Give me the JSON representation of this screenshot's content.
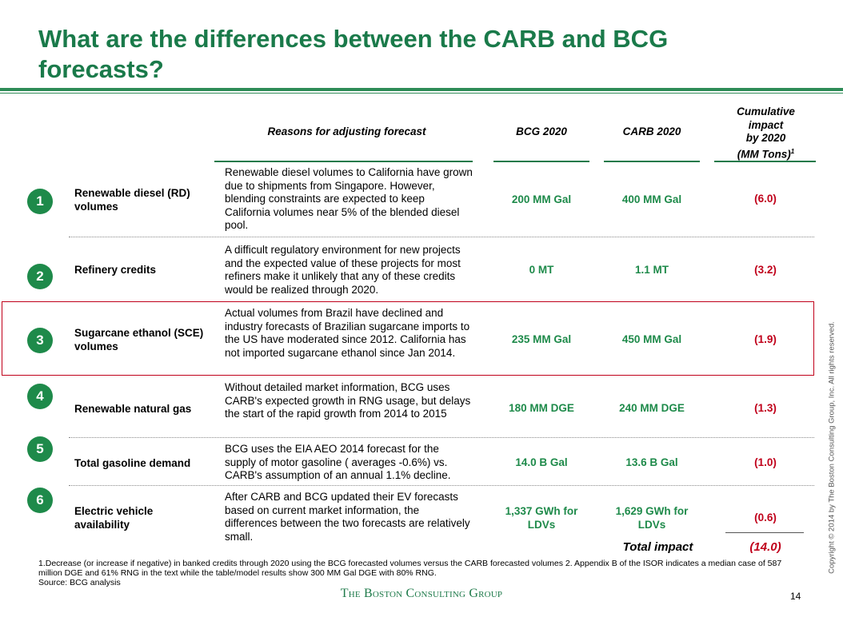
{
  "title": "What are the differences between the CARB and BCG forecasts?",
  "headers": {
    "reasons": "Reasons for adjusting forecast",
    "bcg": "BCG 2020",
    "carb": "CARB 2020",
    "impact_line1": "Cumulative",
    "impact_line2": "impact",
    "impact_line3": "by 2020",
    "impact_line4": "(MM Tons)",
    "impact_sup": "1"
  },
  "rows": [
    {
      "num": "1",
      "label": "Renewable diesel (RD) volumes",
      "reason": "Renewable diesel volumes to California have grown due to shipments from Singapore. However, blending constraints are expected to keep California volumes near 5% of the blended diesel pool.",
      "bcg": "200 MM Gal",
      "carb": "400 MM Gal",
      "impact": "(6.0)"
    },
    {
      "num": "2",
      "label": "Refinery credits",
      "reason": "A difficult regulatory environment for new projects and the expected value of these projects for most refiners make it unlikely that any of these credits would be realized through 2020.",
      "bcg": "0 MT",
      "carb": "1.1 MT",
      "impact": "(3.2)"
    },
    {
      "num": "3",
      "label": "Sugarcane ethanol (SCE) volumes",
      "reason": "Actual volumes from Brazil have declined and industry forecasts of Brazilian sugarcane imports to the US have moderated  since 2012. California has not imported sugarcane ethanol since Jan 2014.",
      "bcg": "235 MM Gal",
      "carb": "450 MM Gal",
      "impact": "(1.9)"
    },
    {
      "num": "4",
      "label": "Renewable natural gas",
      "reason": "Without detailed market information, BCG uses CARB's expected growth in RNG usage, but delays the start of the rapid growth from 2014 to 2015",
      "bcg": "180 MM DGE",
      "carb": "240 MM DGE",
      "impact": "(1.3)"
    },
    {
      "num": "5",
      "label": "Total gasoline demand",
      "reason": "BCG uses the EIA AEO 2014 forecast for the supply of motor gasoline ( averages -0.6%) vs. CARB's assumption of an annual 1.1% decline.",
      "bcg": "14.0 B Gal",
      "carb": "13.6 B Gal",
      "impact": "(1.0)"
    },
    {
      "num": "6",
      "label": "Electric vehicle availability",
      "reason": "After CARB and BCG updated their EV forecasts based on current market information, the differences between the two forecasts are relatively small.",
      "bcg": "1,337 GWh for LDVs",
      "carb": "1,629 GWh for LDVs",
      "impact": "(0.6)"
    }
  ],
  "total": {
    "label": "Total impact",
    "value": "(14.0)"
  },
  "footnote_1": "1.Decrease (or increase if negative) in banked credits through 2020 using the BCG forecasted volumes versus the CARB forecasted volumes 2. Appendix B of the ISOR indicates a median case of 587 million DGE and 61% RNG  in the text while the table/model results show 300 MM Gal DGE with 80% RNG.",
  "footnote_source": "Source: BCG analysis",
  "logo": "The Boston Consulting Group",
  "page_number": "14",
  "copyright": "Copyright © 2014 by The Boston Consulting Group, Inc. All rights reserved.",
  "colors": {
    "accent_green": "#1e8a4a",
    "negative_red": "#c0001a",
    "highlight_border": "#c0001a"
  }
}
